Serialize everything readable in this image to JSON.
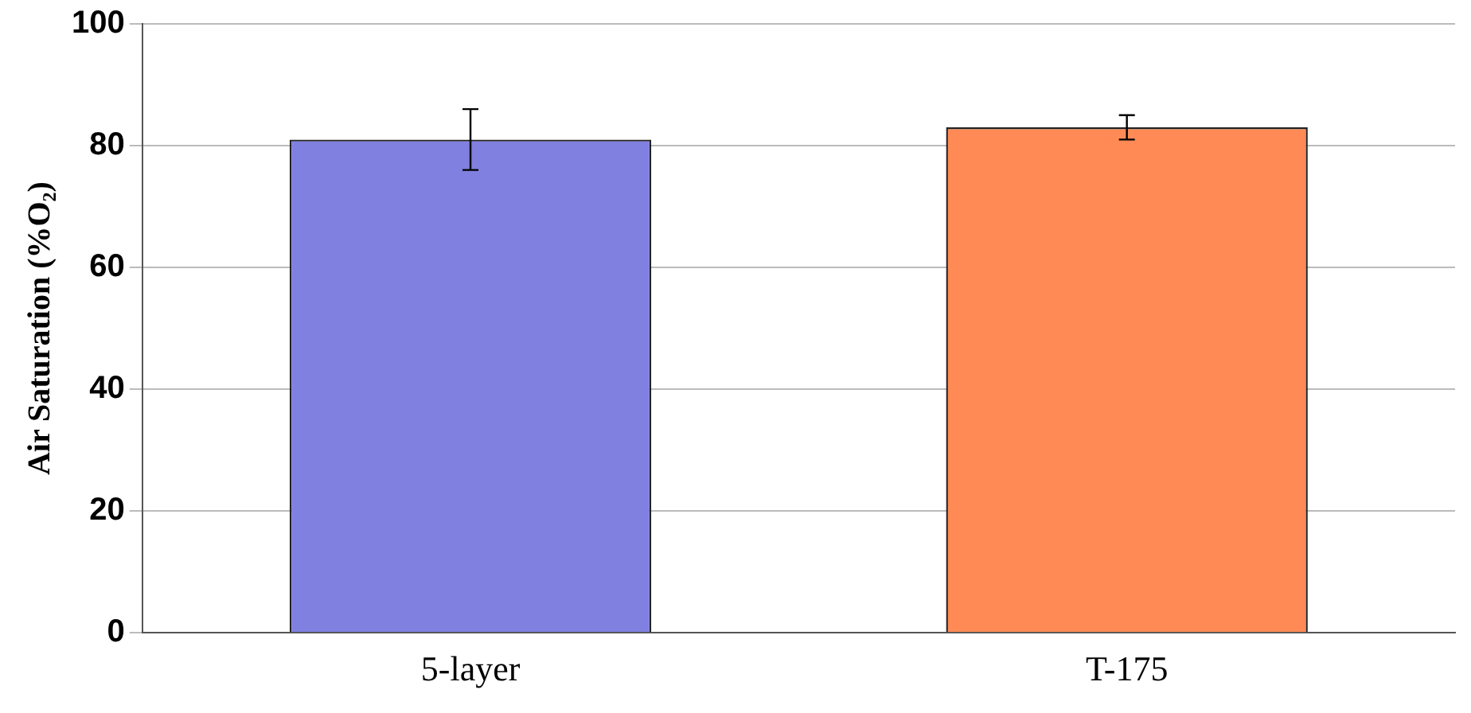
{
  "chart_data": {
    "type": "bar",
    "ylabel": "Air Saturation (%O₂)",
    "categories": [
      "5-layer",
      "T-175"
    ],
    "values": [
      81,
      83
    ],
    "errors": [
      5,
      2
    ],
    "colors": [
      "#8080e0",
      "#ff8a55"
    ],
    "ylim": [
      0,
      100
    ],
    "yticks": [
      0,
      20,
      40,
      60,
      80,
      100
    ],
    "grid": "y",
    "legend": false
  }
}
